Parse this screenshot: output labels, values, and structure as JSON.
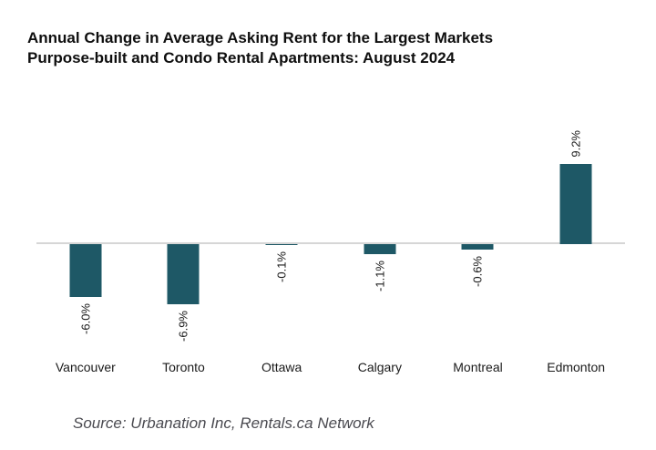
{
  "chart_data": {
    "type": "bar",
    "title": "Annual Change in Average Asking Rent for the Largest Markets Purpose-built and Condo Rental Apartments: August 2024",
    "title_lines": [
      "Annual Change in Average Asking Rent for the Largest Markets",
      "Purpose-built and Condo Rental Apartments: August 2024"
    ],
    "categories": [
      "Vancouver",
      "Toronto",
      "Ottawa",
      "Calgary",
      "Montreal",
      "Edmonton"
    ],
    "values": [
      -6.0,
      -6.9,
      -0.1,
      -1.1,
      -0.6,
      9.2
    ],
    "data_labels": [
      "-6.0%",
      "-6.9%",
      "-0.1%",
      "-1.1%",
      "-0.6%",
      "9.2%"
    ],
    "unit": "%",
    "bar_color": "#1E5866",
    "baseline_color": "#D6D6D6",
    "label_color": "#1A1A1A",
    "data_label_rotation": -90,
    "y_axis_visible": false,
    "gridlines": false,
    "legend": "none",
    "source": "Source: Urbanation Inc, Rentals.ca Network"
  }
}
